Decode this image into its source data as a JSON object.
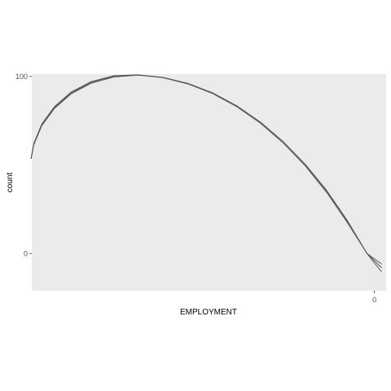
{
  "chart_data": {
    "type": "line",
    "title": "",
    "xlabel": "EMPLOYMENT",
    "ylabel": "count",
    "x_ticks": [
      "0"
    ],
    "y_ticks": [
      {
        "value": 100,
        "label": "100"
      },
      {
        "value": 0,
        "label": "0"
      }
    ],
    "x_domain": [
      -0.956,
      0.012
    ],
    "ylim": [
      -21,
      100.4
    ],
    "grid": false,
    "panel_background": "#ebebeb",
    "line_color": "#595959",
    "series": [
      {
        "x": [
          -0.958,
          -0.9505,
          -0.9287,
          -0.894,
          -0.8487,
          -0.7938,
          -0.7321,
          -0.666,
          -0.5978,
          -0.5293,
          -0.4616,
          -0.3955,
          -0.3313,
          -0.2689,
          -0.2086,
          -0.1502,
          -0.0941,
          -0.0405,
          -0.0022,
          0.0
        ],
        "y": [
          53,
          60.8,
          71.5,
          81.2,
          89.3,
          95.3,
          98.8,
          99.8,
          98.5,
          95.0,
          89.5,
          82.1,
          72.9,
          61.8,
          48.9,
          34.1,
          17.3,
          0,
          -10,
          -10
        ]
      },
      {
        "x": [
          -0.958,
          -0.9505,
          -0.9287,
          -0.894,
          -0.8487,
          -0.7938,
          -0.7321,
          -0.666,
          -0.5978,
          -0.5293,
          -0.4616,
          -0.3955,
          -0.3313,
          -0.2689,
          -0.2086,
          -0.1502,
          -0.0941,
          -0.0405,
          -0.001,
          0.0
        ],
        "y": [
          53,
          61.1,
          71.9,
          81.7,
          89.8,
          95.8,
          99.2,
          100,
          98.6,
          95.2,
          89.9,
          82.6,
          73.5,
          62.5,
          49.6,
          34.8,
          17.9,
          0,
          -8,
          -8
        ]
      },
      {
        "x": [
          -0.958,
          -0.9505,
          -0.9287,
          -0.894,
          -0.8487,
          -0.7938,
          -0.7321,
          -0.666,
          -0.5978,
          -0.5293,
          -0.4616,
          -0.3955,
          -0.3313,
          -0.2689,
          -0.2086,
          -0.1502,
          -0.0941,
          -0.0405,
          -0.0005,
          0.0
        ],
        "y": [
          53,
          61.5,
          72.4,
          82.2,
          90.3,
          96.2,
          99.5,
          100,
          98.4,
          94.9,
          89.6,
          82.4,
          73.4,
          62.5,
          49.8,
          35.2,
          18.4,
          0,
          -6,
          -6
        ]
      }
    ]
  }
}
